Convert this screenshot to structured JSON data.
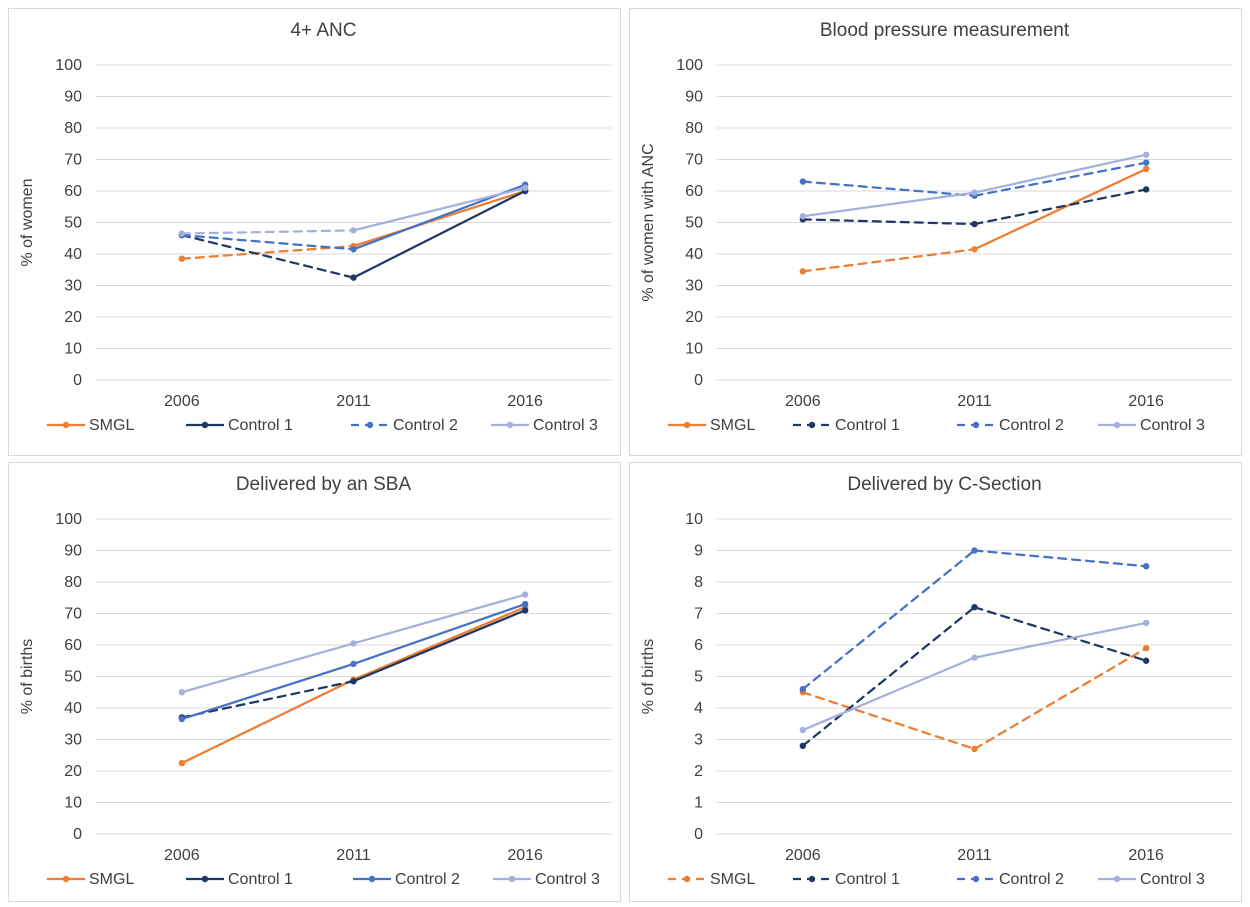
{
  "chart_data": [
    {
      "type": "line",
      "title": "4+ ANC",
      "ylabel": "% of women",
      "xlabel": "",
      "categories": [
        "2006",
        "2011",
        "2016"
      ],
      "ylim": [
        0,
        100
      ],
      "yticks": [
        "0",
        "10",
        "20",
        "30",
        "40",
        "50",
        "60",
        "70",
        "80",
        "90",
        "100"
      ],
      "grid": true,
      "legend_position": "bottom",
      "series": [
        {
          "name": "SMGL",
          "color": "#ED7D31",
          "values": [
            38.5,
            42.5,
            60
          ],
          "dash": [
            true,
            false
          ]
        },
        {
          "name": "Control 1",
          "color": "#203864",
          "values": [
            46,
            32.5,
            60
          ],
          "dash": [
            true,
            false
          ]
        },
        {
          "name": "Control 2",
          "color": "#4472C4",
          "values": [
            46,
            41.5,
            62
          ],
          "dash": [
            true,
            false
          ]
        },
        {
          "name": "Control 3",
          "color": "#A5B1DC",
          "values": [
            46.5,
            47.5,
            61
          ],
          "dash": [
            true,
            false
          ]
        }
      ],
      "legend_style": [
        "solid",
        "solid",
        "dashed",
        "solid"
      ]
    },
    {
      "type": "line",
      "title": "Blood pressure measurement",
      "ylabel": "% of women with ANC",
      "xlabel": "",
      "categories": [
        "2006",
        "2011",
        "2016"
      ],
      "ylim": [
        0,
        100
      ],
      "yticks": [
        "0",
        "10",
        "20",
        "30",
        "40",
        "50",
        "60",
        "70",
        "80",
        "90",
        "100"
      ],
      "grid": true,
      "legend_position": "bottom",
      "series": [
        {
          "name": "SMGL",
          "color": "#ED7D31",
          "values": [
            34.5,
            41.5,
            67
          ],
          "dash": [
            true,
            false
          ]
        },
        {
          "name": "Control 1",
          "color": "#203864",
          "values": [
            51,
            49.5,
            60.5
          ],
          "dash": [
            true,
            true
          ]
        },
        {
          "name": "Control 2",
          "color": "#4472C4",
          "values": [
            63,
            58.5,
            69
          ],
          "dash": [
            true,
            true
          ]
        },
        {
          "name": "Control 3",
          "color": "#A5B1DC",
          "values": [
            52,
            59.5,
            71.5
          ],
          "dash": [
            false,
            false
          ]
        }
      ],
      "legend_style": [
        "solid",
        "dashed",
        "dashed",
        "solid"
      ]
    },
    {
      "type": "line",
      "title": "Delivered by an SBA",
      "ylabel": "% of births",
      "xlabel": "",
      "categories": [
        "2006",
        "2011",
        "2016"
      ],
      "ylim": [
        0,
        100
      ],
      "yticks": [
        "0",
        "10",
        "20",
        "30",
        "40",
        "50",
        "60",
        "70",
        "80",
        "90",
        "100"
      ],
      "grid": true,
      "legend_position": "bottom",
      "series": [
        {
          "name": "SMGL",
          "color": "#ED7D31",
          "values": [
            22.5,
            49,
            72
          ],
          "dash": [
            false,
            false
          ]
        },
        {
          "name": "Control 1",
          "color": "#203864",
          "values": [
            37,
            48.5,
            71
          ],
          "dash": [
            true,
            false
          ]
        },
        {
          "name": "Control 2",
          "color": "#4472C4",
          "values": [
            36.5,
            54,
            73
          ],
          "dash": [
            false,
            false
          ]
        },
        {
          "name": "Control 3",
          "color": "#A5B1DC",
          "values": [
            45,
            60.5,
            76
          ],
          "dash": [
            false,
            false
          ]
        }
      ],
      "legend_style": [
        "solid",
        "solid",
        "solid",
        "solid"
      ]
    },
    {
      "type": "line",
      "title": "Delivered by C-Section",
      "ylabel": "% of births",
      "xlabel": "",
      "categories": [
        "2006",
        "2011",
        "2016"
      ],
      "ylim": [
        0,
        10
      ],
      "yticks": [
        "0",
        "1",
        "2",
        "3",
        "4",
        "5",
        "6",
        "7",
        "8",
        "9",
        "10"
      ],
      "grid": true,
      "legend_position": "bottom",
      "series": [
        {
          "name": "SMGL",
          "color": "#ED7D31",
          "values": [
            4.5,
            2.7,
            5.9
          ],
          "dash": [
            true,
            true
          ]
        },
        {
          "name": "Control 1",
          "color": "#203864",
          "values": [
            2.8,
            7.2,
            5.5
          ],
          "dash": [
            true,
            true
          ]
        },
        {
          "name": "Control 2",
          "color": "#4472C4",
          "values": [
            4.6,
            9,
            8.5
          ],
          "dash": [
            true,
            true
          ]
        },
        {
          "name": "Control 3",
          "color": "#A5B1DC",
          "values": [
            3.3,
            5.6,
            6.7
          ],
          "dash": [
            false,
            false
          ]
        }
      ],
      "legend_style": [
        "dashed",
        "dashed",
        "dashed",
        "solid"
      ]
    }
  ]
}
